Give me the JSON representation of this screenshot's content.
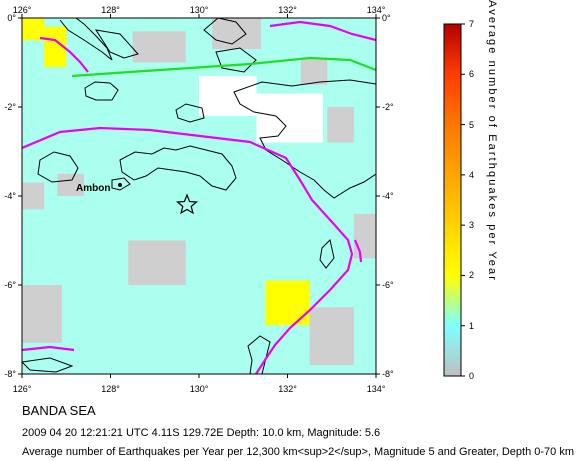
{
  "region_name": "BANDA SEA",
  "event_line": "2009 04 20 12:21:21 UTC 4.11S 129.72E Depth: 10.0 km, Magnitude: 5.6",
  "caption": "Average number of Earthquakes per Year per 12,300 km<sup>2</sup>, Magnitude 5 and Greater, Depth 0-70 km",
  "place_label": "Ambon",
  "axes": {
    "lon_ticks": [
      "126°",
      "128°",
      "130°",
      "132°",
      "134°"
    ],
    "lat_ticks": [
      "0°",
      "-2°",
      "-4°",
      "-6°",
      "-8°"
    ]
  },
  "legend": {
    "title": "Average number of Earthquakes per Year",
    "ticks": [
      "0",
      "1",
      "2",
      "3",
      "4",
      "5",
      "6",
      "7"
    ],
    "colors": [
      "#bfbfbf",
      "#7fffff",
      "#ffff00",
      "#ffd200",
      "#ffa500",
      "#ff7800",
      "#ff3c00",
      "#b40000"
    ]
  },
  "map_colors": {
    "background": "#aaffee",
    "zero": "#cfcfcf",
    "one": "#ffff00",
    "empty": "#ffffff",
    "plate_boundary": "#ee00ee",
    "fault": "#22dd22",
    "coastline": "#000000"
  },
  "chart_data": {
    "type": "heatmap",
    "lon_range": [
      126,
      134
    ],
    "lat_range": [
      -8,
      0
    ],
    "value_range": [
      0,
      7
    ],
    "event": {
      "lat": -4.11,
      "lon": 129.72,
      "depth_km": 10.0,
      "magnitude": 5.6
    },
    "cells": [
      {
        "lon": [
          126.0,
          126.5
        ],
        "lat": [
          -0.5,
          0.0
        ],
        "value": 1.2
      },
      {
        "lon": [
          126.5,
          127.0
        ],
        "lat": [
          -1.1,
          -0.2
        ],
        "value": 1.2
      },
      {
        "lon": [
          131.5,
          132.5
        ],
        "lat": [
          -6.9,
          -5.9
        ],
        "value": 1.3
      },
      {
        "lon": [
          126.0,
          126.5
        ],
        "lat": [
          -4.3,
          -3.7
        ],
        "value": 0.1
      },
      {
        "lon": [
          126.0,
          126.9
        ],
        "lat": [
          -7.3,
          -6.0
        ],
        "value": 0.1
      },
      {
        "lon": [
          128.4,
          129.7
        ],
        "lat": [
          -6.0,
          -5.0
        ],
        "value": 0.1
      },
      {
        "lon": [
          126.8,
          127.4
        ],
        "lat": [
          -4.0,
          -3.5
        ],
        "value": 0.1
      },
      {
        "lon": [
          128.5,
          129.7
        ],
        "lat": [
          -1.0,
          -0.3
        ],
        "value": 0.1
      },
      {
        "lon": [
          130.3,
          131.4
        ],
        "lat": [
          -0.7,
          0.0
        ],
        "value": 0.1
      },
      {
        "lon": [
          132.3,
          132.9
        ],
        "lat": [
          -1.5,
          -0.9
        ],
        "value": 0.1
      },
      {
        "lon": [
          132.9,
          133.5
        ],
        "lat": [
          -2.8,
          -2.0
        ],
        "value": 0.1
      },
      {
        "lon": [
          133.5,
          134.0
        ],
        "lat": [
          -5.4,
          -4.4
        ],
        "value": 0.1
      },
      {
        "lon": [
          132.5,
          133.5
        ],
        "lat": [
          -7.8,
          -6.5
        ],
        "value": 0.1
      },
      {
        "lon": [
          130.0,
          131.3
        ],
        "lat": [
          -2.2,
          -1.3
        ],
        "value": 0
      },
      {
        "lon": [
          131.3,
          132.8
        ],
        "lat": [
          -2.8,
          -1.7
        ],
        "value": 0
      }
    ]
  }
}
